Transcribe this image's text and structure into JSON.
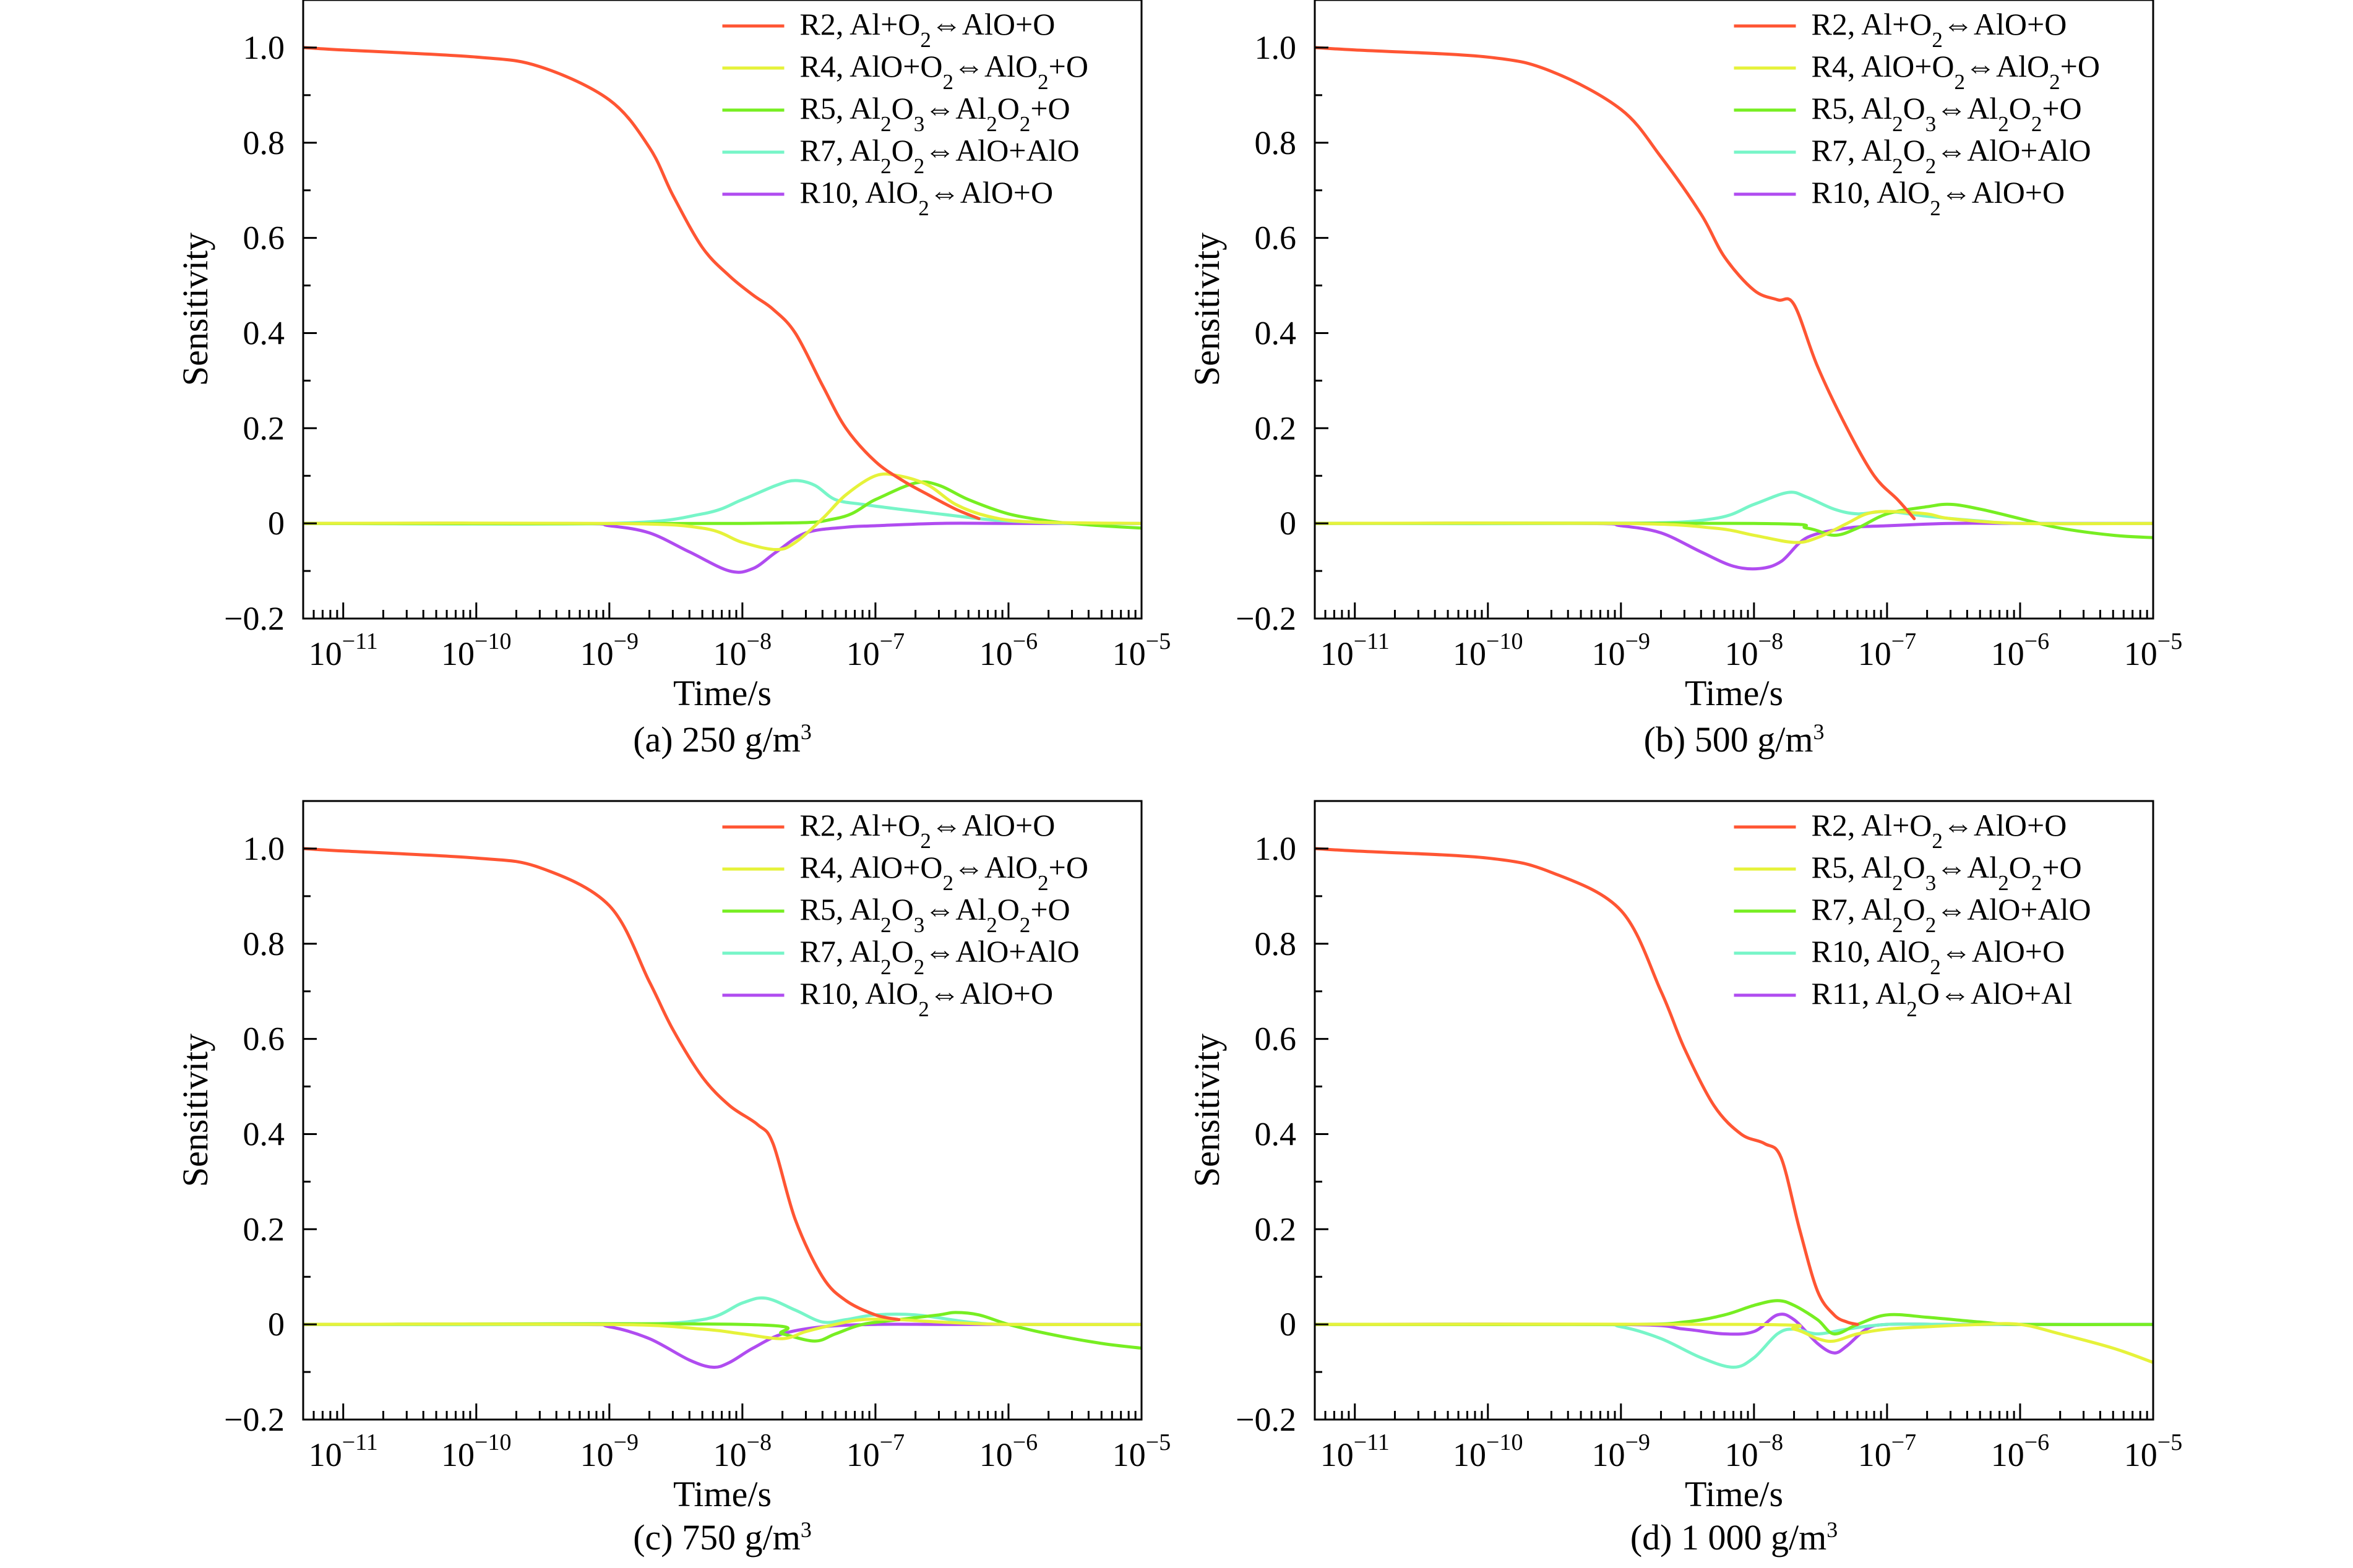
{
  "chart_data": [
    {
      "type": "line",
      "caption": "(a) 250 g/m³",
      "xlabel": "Time/s",
      "ylabel": "Sensitivity",
      "x_scale": "log",
      "xlim": [
        5e-12,
        1e-05
      ],
      "ylim": [
        -0.2,
        1.1
      ],
      "x_ticks": [
        "10^-11",
        "10^-10",
        "10^-9",
        "10^-8",
        "10^-7",
        "10^-6",
        "10^-5"
      ],
      "y_ticks": [
        "−0.2",
        "0",
        "0.2",
        "0.4",
        "0.6",
        "0.8",
        "1.0"
      ],
      "legend_position": "top-right",
      "grid": false,
      "series": [
        {
          "name": "R2, Al+O2⇔AlO+O",
          "color": "#ff5533",
          "x": [
            5e-12,
            1e-11,
            1e-10,
            3e-10,
            1e-09,
            2e-09,
            3e-09,
            5e-09,
            8e-09,
            1.2e-08,
            1.7e-08,
            2.5e-08,
            4e-08,
            6e-08,
            1e-07,
            1.6e-07,
            2.5e-07,
            4e-07,
            6e-07
          ],
          "y": [
            1.0,
            0.995,
            0.98,
            0.96,
            0.89,
            0.79,
            0.69,
            0.58,
            0.52,
            0.48,
            0.45,
            0.4,
            0.29,
            0.2,
            0.13,
            0.09,
            0.06,
            0.03,
            0.01
          ]
        },
        {
          "name": "R4, AlO+O2⇔AlO2+O",
          "color": "#e6f23a",
          "x": [
            5e-12,
            1e-09,
            5e-09,
            1e-08,
            1.8e-08,
            2.5e-08,
            4e-08,
            6e-08,
            1e-07,
            1.5e-07,
            2.5e-07,
            4e-07,
            7e-07,
            1.5e-06,
            1e-05
          ],
          "y": [
            0,
            0,
            -0.01,
            -0.04,
            -0.055,
            -0.04,
            0.01,
            0.06,
            0.1,
            0.1,
            0.08,
            0.04,
            0.015,
            0.003,
            0
          ]
        },
        {
          "name": "R5, Al2O3⇔Al2O2+O",
          "color": "#77ee22",
          "x": [
            5e-12,
            1e-08,
            5e-08,
            1e-07,
            2e-07,
            3e-07,
            5e-07,
            1e-06,
            2e-06,
            3e-06,
            5e-06,
            1e-05
          ],
          "y": [
            0,
            0,
            0.01,
            0.05,
            0.085,
            0.08,
            0.05,
            0.02,
            0.005,
            0,
            -0.005,
            -0.01
          ]
        },
        {
          "name": "R7, Al2O2⇔AlO+AlO",
          "color": "#77f5c8",
          "x": [
            5e-12,
            1e-09,
            5e-09,
            1e-08,
            1.8e-08,
            2.5e-08,
            3.5e-08,
            5e-08,
            8e-08,
            1.5e-07,
            3e-07,
            6e-07,
            1e-06,
            3e-06,
            1e-05
          ],
          "y": [
            0,
            0,
            0.02,
            0.05,
            0.08,
            0.09,
            0.08,
            0.05,
            0.04,
            0.03,
            0.02,
            0.01,
            0.005,
            0,
            0
          ]
        },
        {
          "name": "R10, AlO2⇔AlO+O",
          "color": "#b04cf0",
          "x": [
            5e-12,
            5e-10,
            1e-09,
            2e-09,
            4e-09,
            8e-09,
            1.2e-08,
            1.8e-08,
            3e-08,
            6e-08,
            1e-07,
            3e-07,
            1e-06,
            1e-05
          ],
          "y": [
            0,
            0,
            -0.005,
            -0.02,
            -0.06,
            -0.1,
            -0.095,
            -0.06,
            -0.02,
            -0.008,
            -0.005,
            0,
            0,
            0
          ]
        }
      ]
    },
    {
      "type": "line",
      "caption": "(b) 500 g/m³",
      "xlabel": "Time/s",
      "ylabel": "Sensitivity",
      "x_scale": "log",
      "xlim": [
        5e-12,
        1e-05
      ],
      "ylim": [
        -0.2,
        1.1
      ],
      "x_ticks": [
        "10^-11",
        "10^-10",
        "10^-9",
        "10^-8",
        "10^-7",
        "10^-6",
        "10^-5"
      ],
      "y_ticks": [
        "−0.2",
        "0",
        "0.2",
        "0.4",
        "0.6",
        "0.8",
        "1.0"
      ],
      "legend_position": "top-right",
      "grid": false,
      "series": [
        {
          "name": "R2, Al+O2⇔AlO+O",
          "color": "#ff5533",
          "x": [
            5e-12,
            1e-11,
            1e-10,
            3e-10,
            1e-09,
            2e-09,
            4e-09,
            6e-09,
            1e-08,
            1.5e-08,
            2e-08,
            3e-08,
            5e-08,
            8e-08,
            1.2e-07,
            1.6e-07
          ],
          "y": [
            1.0,
            0.995,
            0.98,
            0.95,
            0.87,
            0.77,
            0.65,
            0.56,
            0.49,
            0.47,
            0.46,
            0.33,
            0.2,
            0.1,
            0.05,
            0.01
          ]
        },
        {
          "name": "R4, AlO+O2⇔AlO2+O",
          "color": "#e6f23a",
          "x": [
            5e-12,
            1e-09,
            5e-09,
            1e-08,
            2e-08,
            3e-08,
            5e-08,
            7e-08,
            1e-07,
            2e-07,
            3e-07,
            1e-06,
            1e-05
          ],
          "y": [
            0,
            0,
            -0.01,
            -0.025,
            -0.04,
            -0.03,
            0.0,
            0.02,
            0.025,
            0.02,
            0.01,
            0,
            0
          ]
        },
        {
          "name": "R5, Al2O3⇔Al2O2+O",
          "color": "#77ee22",
          "x": [
            5e-12,
            1e-08,
            2.5e-08,
            4e-08,
            6e-08,
            1e-07,
            2e-07,
            3e-07,
            5e-07,
            1e-06,
            2e-06,
            5e-06,
            1e-05
          ],
          "y": [
            0,
            0,
            -0.01,
            -0.025,
            -0.01,
            0.02,
            0.035,
            0.04,
            0.03,
            0.01,
            -0.01,
            -0.025,
            -0.03
          ]
        },
        {
          "name": "R7, Al2O2⇔AlO+AlO",
          "color": "#77f5c8",
          "x": [
            5e-12,
            1e-09,
            5e-09,
            1e-08,
            1.8e-08,
            2.5e-08,
            4e-08,
            6e-08,
            1e-07,
            2e-07,
            5e-07,
            1e-06,
            1e-05
          ],
          "y": [
            0,
            0,
            0.01,
            0.04,
            0.065,
            0.055,
            0.03,
            0.02,
            0.025,
            0.015,
            0.005,
            0,
            0
          ]
        },
        {
          "name": "R10, AlO2⇔AlO+O",
          "color": "#b04cf0",
          "x": [
            5e-12,
            5e-10,
            1e-09,
            2e-09,
            4e-09,
            7e-09,
            1.1e-08,
            1.6e-08,
            2.5e-08,
            5e-08,
            1e-07,
            3e-07,
            1e-06,
            1e-05
          ],
          "y": [
            0,
            0,
            -0.005,
            -0.02,
            -0.06,
            -0.09,
            -0.095,
            -0.08,
            -0.03,
            -0.01,
            -0.005,
            0,
            0,
            0
          ]
        }
      ]
    },
    {
      "type": "line",
      "caption": "(c) 750 g/m³",
      "xlabel": "Time/s",
      "ylabel": "Sensitivity",
      "x_scale": "log",
      "xlim": [
        5e-12,
        1e-05
      ],
      "ylim": [
        -0.2,
        1.1
      ],
      "x_ticks": [
        "10^-11",
        "10^-10",
        "10^-9",
        "10^-8",
        "10^-7",
        "10^-6",
        "10^-5"
      ],
      "y_ticks": [
        "−0.2",
        "0",
        "0.2",
        "0.4",
        "0.6",
        "0.8",
        "1.0"
      ],
      "legend_position": "top-right",
      "grid": false,
      "series": [
        {
          "name": "R2, Al+O2⇔AlO+O",
          "color": "#ff5533",
          "x": [
            5e-12,
            1e-11,
            1e-10,
            3e-10,
            1e-09,
            2e-09,
            3e-09,
            5e-09,
            8e-09,
            1.3e-08,
            1.7e-08,
            2.5e-08,
            4e-08,
            6e-08,
            1e-07,
            1.5e-07
          ],
          "y": [
            1.0,
            0.995,
            0.98,
            0.96,
            0.88,
            0.72,
            0.62,
            0.52,
            0.46,
            0.42,
            0.38,
            0.22,
            0.1,
            0.05,
            0.02,
            0.01
          ]
        },
        {
          "name": "R4, AlO+O2⇔AlO2+O",
          "color": "#e6f23a",
          "x": [
            5e-12,
            1e-09,
            5e-09,
            1e-08,
            2e-08,
            3e-08,
            5e-08,
            8e-08,
            1.5e-07,
            3e-07,
            1e-06,
            1e-05
          ],
          "y": [
            0,
            0,
            -0.01,
            -0.02,
            -0.03,
            -0.015,
            0.0,
            0.01,
            0.01,
            0.005,
            0,
            0
          ]
        },
        {
          "name": "R5, Al2O3⇔Al2O2+O",
          "color": "#77ee22",
          "x": [
            5e-12,
            1e-08,
            2e-08,
            3.5e-08,
            5e-08,
            8e-08,
            1.5e-07,
            3e-07,
            4e-07,
            6e-07,
            1e-06,
            2e-06,
            5e-06,
            1e-05
          ],
          "y": [
            0,
            0,
            -0.02,
            -0.035,
            -0.02,
            0.0,
            0.01,
            0.02,
            0.025,
            0.02,
            0.0,
            -0.02,
            -0.04,
            -0.05
          ]
        },
        {
          "name": "R7, Al2O2⇔AlO+AlO",
          "color": "#77f5c8",
          "x": [
            5e-12,
            1e-09,
            5e-09,
            1e-08,
            1.5e-08,
            2.5e-08,
            4e-08,
            6e-08,
            1e-07,
            2e-07,
            5e-07,
            1e-06,
            1e-05
          ],
          "y": [
            0,
            0,
            0.01,
            0.045,
            0.055,
            0.03,
            0.005,
            0.01,
            0.02,
            0.02,
            0.005,
            0,
            0
          ]
        },
        {
          "name": "R10, AlO2⇔AlO+O",
          "color": "#b04cf0",
          "x": [
            5e-12,
            5e-10,
            1e-09,
            2e-09,
            4e-09,
            6e-09,
            8e-09,
            1.2e-08,
            2e-08,
            4e-08,
            1e-07,
            3e-07,
            1e-06,
            1e-05
          ],
          "y": [
            0,
            0,
            -0.005,
            -0.03,
            -0.075,
            -0.09,
            -0.08,
            -0.05,
            -0.02,
            -0.005,
            0,
            0,
            0,
            0
          ]
        }
      ]
    },
    {
      "type": "line",
      "caption": "(d) 1 000 g/m³",
      "xlabel": "Time/s",
      "ylabel": "Sensitivity",
      "x_scale": "log",
      "xlim": [
        5e-12,
        1e-05
      ],
      "ylim": [
        -0.2,
        1.1
      ],
      "x_ticks": [
        "10^-11",
        "10^-10",
        "10^-9",
        "10^-8",
        "10^-7",
        "10^-6",
        "10^-5"
      ],
      "y_ticks": [
        "−0.2",
        "0",
        "0.2",
        "0.4",
        "0.6",
        "0.8",
        "1.0"
      ],
      "legend_position": "top-right",
      "grid": false,
      "series": [
        {
          "name": "R2, Al+O2⇔AlO+O",
          "color": "#ff5533",
          "x": [
            5e-12,
            1e-11,
            1e-10,
            3e-10,
            1e-09,
            2e-09,
            3e-09,
            5e-09,
            8e-09,
            1.2e-08,
            1.6e-08,
            2.2e-08,
            3e-08,
            4e-08,
            5e-08,
            6e-08
          ],
          "y": [
            1.0,
            0.995,
            0.98,
            0.95,
            0.87,
            0.7,
            0.58,
            0.46,
            0.4,
            0.38,
            0.35,
            0.2,
            0.07,
            0.02,
            0.005,
            0.0
          ]
        },
        {
          "name": "R5, Al2O3⇔Al2O2+O",
          "color": "#e6f23a",
          "x": [
            5e-12,
            1e-08,
            2e-08,
            3e-08,
            4e-08,
            6e-08,
            1e-07,
            2e-07,
            5e-07,
            1e-06,
            2e-06,
            5e-06,
            1e-05
          ],
          "y": [
            0,
            0,
            -0.01,
            -0.03,
            -0.035,
            -0.02,
            -0.01,
            -0.005,
            0.0,
            0.0,
            -0.02,
            -0.05,
            -0.08
          ]
        },
        {
          "name": "R7, Al2O2⇔AlO+AlO",
          "color": "#77ee22",
          "x": [
            5e-12,
            1e-09,
            3e-09,
            6e-09,
            1e-08,
            1.5e-08,
            2e-08,
            3e-08,
            4e-08,
            6e-08,
            1e-07,
            2e-07,
            5e-07,
            1e-06,
            1e-05
          ],
          "y": [
            0,
            0,
            0.005,
            0.02,
            0.04,
            0.05,
            0.04,
            0.01,
            -0.02,
            0.0,
            0.02,
            0.015,
            0.005,
            0,
            0
          ]
        },
        {
          "name": "R10, AlO2⇔AlO+O",
          "color": "#77f5c8",
          "x": [
            5e-12,
            5e-10,
            1e-09,
            2e-09,
            4e-09,
            7e-09,
            1e-08,
            1.5e-08,
            2e-08,
            3e-08,
            5e-08,
            1e-07,
            3e-07,
            1e-06,
            1e-05
          ],
          "y": [
            0,
            0,
            -0.005,
            -0.03,
            -0.07,
            -0.09,
            -0.07,
            -0.02,
            -0.01,
            -0.02,
            -0.01,
            0.0,
            0.0,
            0,
            0
          ]
        },
        {
          "name": "R11, Al2O⇔AlO+Al",
          "color": "#b04cf0",
          "x": [
            5e-12,
            1e-09,
            3e-09,
            6e-09,
            1e-08,
            1.5e-08,
            2e-08,
            3e-08,
            4e-08,
            5e-08,
            7e-08,
            1e-07,
            3e-07,
            1e-06,
            1e-05
          ],
          "y": [
            0,
            0,
            -0.01,
            -0.02,
            -0.015,
            0.02,
            0.01,
            -0.04,
            -0.06,
            -0.045,
            -0.01,
            0.0,
            0,
            0,
            0
          ]
        }
      ]
    }
  ]
}
